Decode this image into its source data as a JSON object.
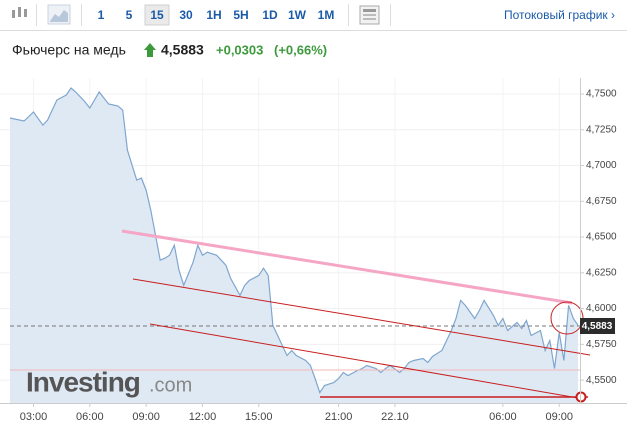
{
  "toolbar": {
    "intervals": [
      "1",
      "5",
      "15",
      "30",
      "1H",
      "5H",
      "1D",
      "1W",
      "1M"
    ],
    "active": "15",
    "stream": "Потоковый график ›"
  },
  "header": {
    "title": "Фьючерс на медь",
    "price": "4,5883",
    "change": "+0,0303",
    "change_pct": "(+0,66%)"
  },
  "watermark": [
    "Investing",
    ".com"
  ],
  "chart_data": {
    "type": "line",
    "x": [
      0,
      2,
      3,
      5,
      7,
      8,
      10,
      12,
      13,
      14,
      16,
      17,
      18,
      19,
      21,
      22,
      23,
      24,
      25,
      27,
      28,
      29,
      30,
      31,
      32,
      33,
      34,
      35,
      36,
      37,
      39,
      40,
      41,
      42,
      44,
      45,
      46,
      47,
      49,
      50,
      51,
      53,
      54,
      55,
      56,
      58,
      59,
      60,
      61,
      63,
      64,
      65,
      66,
      67,
      69,
      70,
      71,
      72,
      74,
      75,
      76,
      78,
      79,
      80,
      81,
      83,
      84,
      85,
      86,
      88,
      89,
      90,
      92,
      93,
      94,
      95,
      96,
      97,
      99,
      100,
      101,
      103,
      104,
      105,
      106,
      108,
      109,
      110,
      111,
      113,
      114,
      115,
      116,
      117,
      118,
      119,
      120,
      121
    ],
    "values": [
      4.7332,
      4.7318,
      4.7311,
      4.7374,
      4.7283,
      4.7318,
      4.7458,
      4.7493,
      4.7542,
      4.7514,
      4.7444,
      4.7402,
      4.7458,
      4.7514,
      4.743,
      4.7423,
      4.7416,
      4.7388,
      4.7108,
      4.6898,
      4.6912,
      4.6828,
      4.6688,
      4.6513,
      4.6338,
      4.6352,
      4.6373,
      4.6443,
      4.6268,
      4.6163,
      4.6324,
      4.6443,
      4.6373,
      4.6394,
      4.6373,
      4.6338,
      4.6303,
      4.6212,
      4.6092,
      4.6163,
      4.6197,
      4.6232,
      4.6282,
      4.6232,
      4.5882,
      4.5742,
      4.5672,
      4.5707,
      4.5672,
      4.5637,
      4.5602,
      4.5511,
      4.5413,
      4.5462,
      4.5483,
      4.5511,
      4.5553,
      4.5532,
      4.5567,
      4.5581,
      4.5602,
      4.5581,
      4.5553,
      4.5581,
      4.5602,
      4.5553,
      4.5581,
      4.5623,
      4.5637,
      4.5651,
      4.5623,
      4.5665,
      4.5707,
      4.5777,
      4.5847,
      4.5931,
      4.6057,
      4.6022,
      4.5931,
      4.5987,
      4.6057,
      4.5952,
      4.5882,
      4.5931,
      4.5847,
      4.5903,
      4.5861,
      4.5917,
      4.5812,
      4.5847,
      4.5707,
      4.5777,
      4.5581,
      4.5833,
      4.5637,
      4.6023,
      4.5931,
      4.5883
    ],
    "color": "#7fa6cf",
    "fill_color": "#dfe9f4",
    "xlim": [
      0,
      121
    ],
    "xticks": [
      {
        "value": 5,
        "label": "03:00"
      },
      {
        "value": 17,
        "label": "06:00"
      },
      {
        "value": 29,
        "label": "09:00"
      },
      {
        "value": 41,
        "label": "12:00"
      },
      {
        "value": 53,
        "label": "15:00"
      },
      {
        "value": 70,
        "label": "21:00"
      },
      {
        "value": 82,
        "label": "22.10"
      },
      {
        "value": 105,
        "label": "06:00"
      },
      {
        "value": 117,
        "label": "09:00"
      }
    ],
    "ylim": [
      4.534,
      4.7563
    ],
    "yticks": [
      {
        "value": 4.55,
        "label": "4,5500"
      },
      {
        "value": 4.575,
        "label": "4,5750"
      },
      {
        "value": 4.6,
        "label": "4,6000"
      },
      {
        "value": 4.625,
        "label": "4,6250"
      },
      {
        "value": 4.65,
        "label": "4,6500"
      },
      {
        "value": 4.675,
        "label": "4,6750"
      },
      {
        "value": 4.7,
        "label": "4,7000"
      },
      {
        "value": 4.725,
        "label": "4,7250"
      },
      {
        "value": 4.75,
        "label": "4,7500"
      }
    ],
    "grid": true
  }
}
